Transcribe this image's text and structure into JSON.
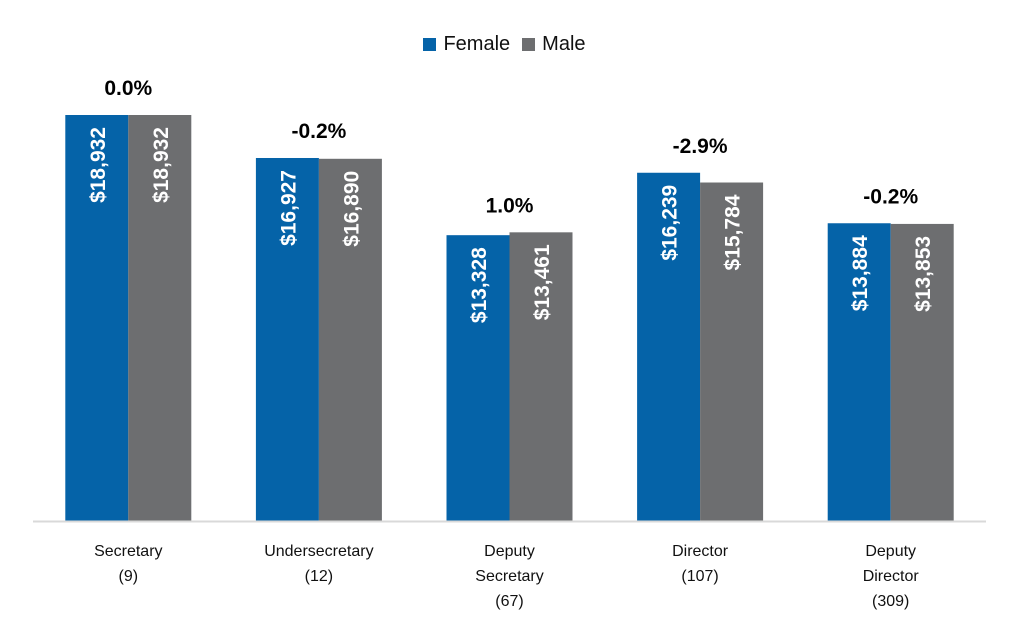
{
  "chart_data": {
    "type": "bar",
    "title": "",
    "xlabel": "",
    "ylabel": "",
    "ylim": [
      0,
      20000
    ],
    "grid": false,
    "legend_position": "top-center",
    "categories": [
      {
        "lines": [
          "Secretary",
          "(9)"
        ]
      },
      {
        "lines": [
          "Undersecretary",
          "(12)"
        ]
      },
      {
        "lines": [
          "Deputy",
          "Secretary",
          "(67)"
        ]
      },
      {
        "lines": [
          "Director",
          "(107)"
        ]
      },
      {
        "lines": [
          "Deputy",
          "Director",
          "(309)"
        ]
      }
    ],
    "series": [
      {
        "name": "Female",
        "color": "#0563A8",
        "values": [
          18932,
          16927,
          13328,
          16239,
          13884
        ],
        "labels": [
          "$18,932",
          "$16,927",
          "$13,328",
          "$16,239",
          "$13,884"
        ]
      },
      {
        "name": "Male",
        "color": "#6D6E70",
        "values": [
          18932,
          16890,
          13461,
          15784,
          13853
        ],
        "labels": [
          "$18,932",
          "$16,890",
          "$13,461",
          "$15,784",
          "$13,853"
        ]
      }
    ],
    "gap_annotations": [
      "0.0%",
      "-0.2%",
      "1.0%",
      "-2.9%",
      "-0.2%"
    ]
  },
  "legend": {
    "items": [
      {
        "label": "Female",
        "color": "#0563A8"
      },
      {
        "label": "Male",
        "color": "#6D6E70"
      }
    ]
  },
  "axis_color": "#D9D9D9"
}
